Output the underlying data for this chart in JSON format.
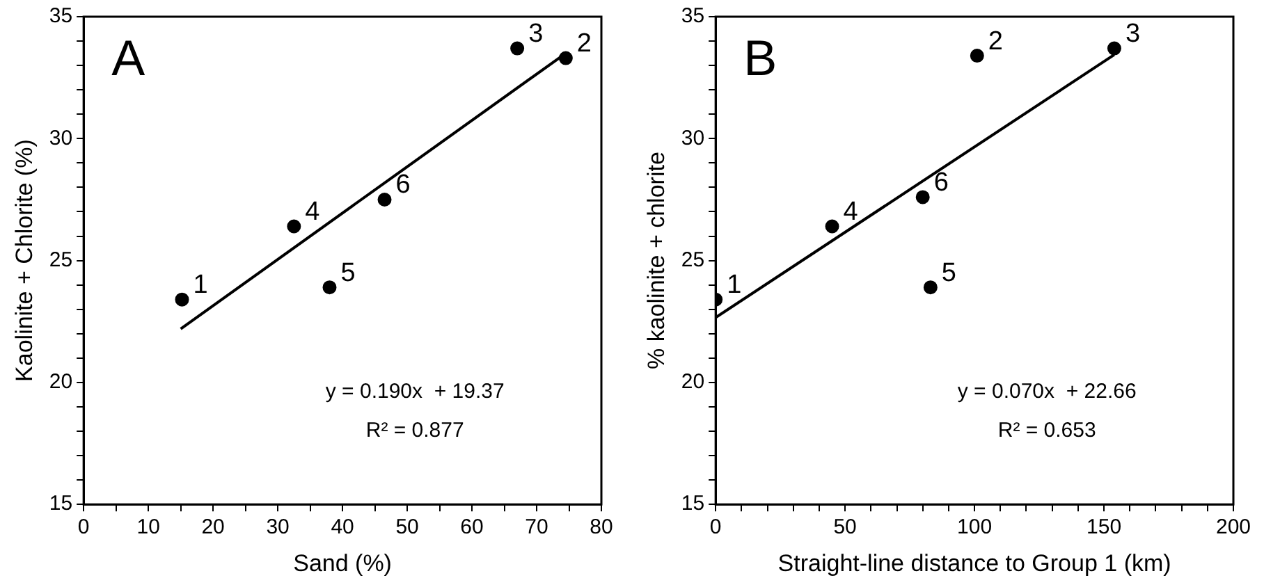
{
  "chart_data": [
    {
      "type": "scatter",
      "xlabel": "Sand (%)",
      "ylabel": "Kaolinite + Chlorite (%)",
      "xlim": [
        0,
        80
      ],
      "xticks": [
        0,
        {
          "value": 5,
          "label": null
        },
        10,
        {
          "value": 15,
          "label": null
        },
        20,
        {
          "value": 25,
          "label": null
        },
        30,
        {
          "value": 35,
          "label": null
        },
        40,
        {
          "value": 45,
          "label": null
        },
        50,
        {
          "value": 55,
          "label": null
        },
        60,
        {
          "value": 65,
          "label": null
        },
        70,
        {
          "value": 75,
          "label": null
        },
        80
      ],
      "ylim": [
        15,
        35
      ],
      "yticks": [
        15,
        {
          "value": 16,
          "label": null
        },
        {
          "value": 17,
          "label": null
        },
        {
          "value": 18,
          "label": null
        },
        {
          "value": 19,
          "label": null
        },
        20,
        {
          "value": 21,
          "label": null
        },
        {
          "value": 22,
          "label": null
        },
        {
          "value": 23,
          "label": null
        },
        {
          "value": 24,
          "label": null
        },
        25,
        {
          "value": 26,
          "label": null
        },
        {
          "value": 27,
          "label": null
        },
        {
          "value": 28,
          "label": null
        },
        {
          "value": 29,
          "label": null
        },
        30,
        {
          "value": 31,
          "label": null
        },
        {
          "value": 32,
          "label": null
        },
        {
          "value": 33,
          "label": null
        },
        {
          "value": 34,
          "label": null
        },
        35
      ],
      "grid": false,
      "legend": false,
      "marker": "circle",
      "series": [
        {
          "color": "#000000",
          "x": [
            15.2,
            74.5,
            67,
            32.5,
            38,
            46.5
          ],
          "values": [
            23.4,
            33.3,
            33.7,
            26.4,
            23.9,
            27.5
          ]
        },
        {
          "type": "line",
          "color": "#000000",
          "marker": "none",
          "line_style": "solid",
          "x": [
            15,
            74.5
          ],
          "values": [
            22.2,
            33.5
          ]
        }
      ],
      "annotations": [
        "A",
        "y = 0.190x  + 19.37",
        "R² = 0.877",
        {
          "text": "1",
          "x": 15.2,
          "y": 23.4
        },
        {
          "text": "2",
          "x": 74.5,
          "y": 33.3
        },
        {
          "text": "3",
          "x": 67,
          "y": 33.7
        },
        {
          "text": "4",
          "x": 32.5,
          "y": 26.4
        },
        {
          "text": "5",
          "x": 38,
          "y": 23.9
        },
        {
          "text": "6",
          "x": 46.5,
          "y": 27.5
        }
      ]
    },
    {
      "type": "scatter",
      "xlabel": "Straight-line distance to Group 1 (km)",
      "ylabel": "% kaolinite + chlorite",
      "xlim": [
        0,
        200
      ],
      "xticks": [
        0,
        {
          "value": 10,
          "label": null
        },
        {
          "value": 20,
          "label": null
        },
        {
          "value": 30,
          "label": null
        },
        {
          "value": 40,
          "label": null
        },
        50,
        {
          "value": 60,
          "label": null
        },
        {
          "value": 70,
          "label": null
        },
        {
          "value": 80,
          "label": null
        },
        {
          "value": 90,
          "label": null
        },
        100,
        {
          "value": 110,
          "label": null
        },
        {
          "value": 120,
          "label": null
        },
        {
          "value": 130,
          "label": null
        },
        {
          "value": 140,
          "label": null
        },
        150,
        {
          "value": 160,
          "label": null
        },
        {
          "value": 170,
          "label": null
        },
        {
          "value": 180,
          "label": null
        },
        {
          "value": 190,
          "label": null
        },
        200
      ],
      "ylim": [
        15,
        35
      ],
      "yticks": [
        15,
        {
          "value": 16,
          "label": null
        },
        {
          "value": 17,
          "label": null
        },
        {
          "value": 18,
          "label": null
        },
        {
          "value": 19,
          "label": null
        },
        20,
        {
          "value": 21,
          "label": null
        },
        {
          "value": 22,
          "label": null
        },
        {
          "value": 23,
          "label": null
        },
        {
          "value": 24,
          "label": null
        },
        25,
        {
          "value": 26,
          "label": null
        },
        {
          "value": 27,
          "label": null
        },
        {
          "value": 28,
          "label": null
        },
        {
          "value": 29,
          "label": null
        },
        30,
        {
          "value": 31,
          "label": null
        },
        {
          "value": 32,
          "label": null
        },
        {
          "value": 33,
          "label": null
        },
        {
          "value": 34,
          "label": null
        },
        35
      ],
      "grid": false,
      "legend": false,
      "marker": "circle",
      "series": [
        {
          "color": "#000000",
          "x": [
            0,
            101,
            154,
            45,
            83,
            80
          ],
          "values": [
            23.4,
            33.4,
            33.7,
            26.4,
            23.9,
            27.6
          ]
        },
        {
          "type": "line",
          "color": "#000000",
          "marker": "none",
          "line_style": "solid",
          "x": [
            0,
            154
          ],
          "values": [
            22.66,
            33.44
          ]
        }
      ],
      "annotations": [
        "B",
        "y = 0.070x  + 22.66",
        "R² = 0.653",
        {
          "text": "1",
          "x": 0,
          "y": 23.4
        },
        {
          "text": "2",
          "x": 101,
          "y": 33.4
        },
        {
          "text": "3",
          "x": 154,
          "y": 33.7
        },
        {
          "text": "4",
          "x": 45,
          "y": 26.4
        },
        {
          "text": "5",
          "x": 83,
          "y": 23.9
        },
        {
          "text": "6",
          "x": 80,
          "y": 27.6
        }
      ]
    }
  ]
}
